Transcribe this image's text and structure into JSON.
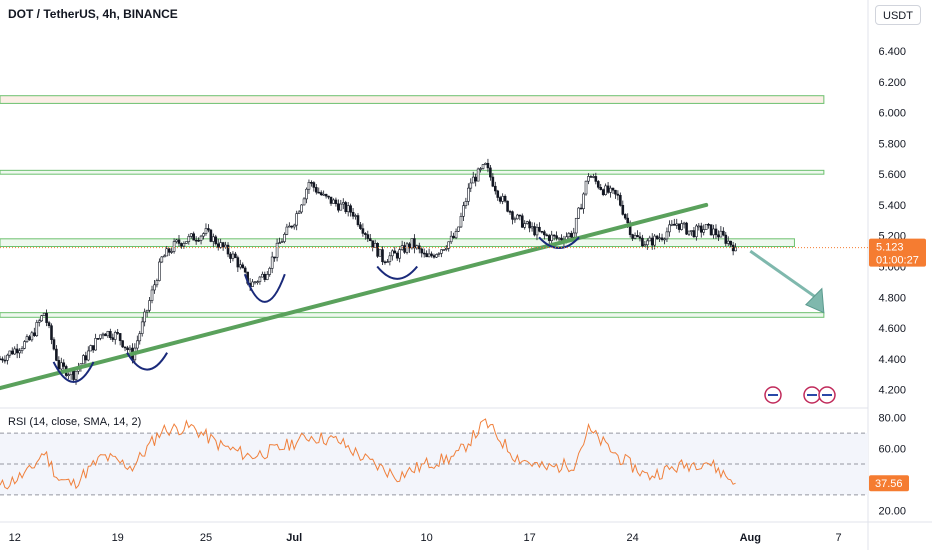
{
  "header": {
    "title": "DOT / TetherUS, 4h, BINANCE",
    "currency": "USDT"
  },
  "chart_data": [
    {
      "type": "candlestick",
      "title": "DOT / TetherUS, 4h, BINANCE",
      "y_unit": "USDT",
      "ylim": [
        4.1,
        6.55
      ],
      "y_ticks": [
        "6.400",
        "6.200",
        "6.000",
        "5.800",
        "5.600",
        "5.400",
        "5.200",
        "5.000",
        "4.800",
        "4.600",
        "4.400",
        "4.200"
      ],
      "x_ticks": [
        "12",
        "19",
        "25",
        "Jul",
        "10",
        "17",
        "24",
        "Aug",
        "7"
      ],
      "x_range": [
        "2023-06-11",
        "2023-08-09"
      ],
      "price_path": [
        [
          "2023-06-11",
          4.4
        ],
        [
          "2023-06-13",
          4.52
        ],
        [
          "2023-06-14",
          4.7
        ],
        [
          "2023-06-15",
          4.35
        ],
        [
          "2023-06-16",
          4.3
        ],
        [
          "2023-06-18",
          4.58
        ],
        [
          "2023-06-19",
          4.55
        ],
        [
          "2023-06-20",
          4.42
        ],
        [
          "2023-06-21",
          4.72
        ],
        [
          "2023-06-22",
          5.05
        ],
        [
          "2023-06-23",
          5.15
        ],
        [
          "2023-06-25",
          5.22
        ],
        [
          "2023-06-27",
          5.05
        ],
        [
          "2023-06-28",
          4.88
        ],
        [
          "2023-06-29",
          4.95
        ],
        [
          "2023-06-30",
          5.15
        ],
        [
          "2023-07-01",
          5.3
        ],
        [
          "2023-07-02",
          5.55
        ],
        [
          "2023-07-03",
          5.45
        ],
        [
          "2023-07-05",
          5.35
        ],
        [
          "2023-07-06",
          5.2
        ],
        [
          "2023-07-07",
          5.05
        ],
        [
          "2023-07-08",
          5.08
        ],
        [
          "2023-07-09",
          5.15
        ],
        [
          "2023-07-10",
          5.05
        ],
        [
          "2023-07-11",
          5.12
        ],
        [
          "2023-07-12",
          5.2
        ],
        [
          "2023-07-13",
          5.55
        ],
        [
          "2023-07-14",
          5.65
        ],
        [
          "2023-07-15",
          5.45
        ],
        [
          "2023-07-16",
          5.32
        ],
        [
          "2023-07-17",
          5.25
        ],
        [
          "2023-07-18",
          5.2
        ],
        [
          "2023-07-19",
          5.18
        ],
        [
          "2023-07-20",
          5.22
        ],
        [
          "2023-07-21",
          5.6
        ],
        [
          "2023-07-22",
          5.5
        ],
        [
          "2023-07-23",
          5.45
        ],
        [
          "2023-07-24",
          5.2
        ],
        [
          "2023-07-25",
          5.15
        ],
        [
          "2023-07-26",
          5.2
        ],
        [
          "2023-07-27",
          5.28
        ],
        [
          "2023-07-28",
          5.22
        ],
        [
          "2023-07-29",
          5.25
        ],
        [
          "2023-07-30",
          5.2
        ],
        [
          "2023-07-31",
          5.123
        ]
      ],
      "last_price_label": "5.123",
      "countdown_label": "01:00:27",
      "zones": [
        {
          "y_low": 6.06,
          "y_high": 6.11,
          "x_end": "2023-08-06",
          "fill": "#fbeee6"
        },
        {
          "y_low": 5.6,
          "y_high": 5.625,
          "x_end": "2023-08-06",
          "fill": "#eef8ee"
        },
        {
          "y_low": 5.13,
          "y_high": 5.18,
          "x_end": "2023-08-04",
          "fill": "#eef8ee"
        },
        {
          "y_low": 4.67,
          "y_high": 4.7,
          "x_end": "2023-08-06",
          "fill": "#eef8ee"
        }
      ],
      "trendline": {
        "start": [
          "2023-06-11",
          4.21
        ],
        "end": [
          "2023-07-29",
          5.4
        ],
        "color": "#5aa15c"
      },
      "arrow": {
        "start": [
          "2023-08-01",
          5.1
        ],
        "end": [
          "2023-08-06",
          4.7
        ],
        "color": "#7fb8ad"
      },
      "arcs": [
        {
          "x_center": "2023-06-16",
          "y_top": 4.38,
          "y_bottom": 4.25
        },
        {
          "x_center": "2023-06-21",
          "y_top": 4.44,
          "y_bottom": 4.33
        },
        {
          "x_center": "2023-06-29",
          "y_top": 4.95,
          "y_bottom": 4.77
        },
        {
          "x_center": "2023-07-08",
          "y_top": 5.0,
          "y_bottom": 4.92
        },
        {
          "x_center": "2023-07-19",
          "y_top": 5.19,
          "y_bottom": 5.12
        }
      ],
      "colors": {
        "up": "#131722",
        "down": "#131722",
        "price_label": "#f57c31"
      }
    },
    {
      "type": "line",
      "title": "RSI (14, close, SMA, 14, 2)",
      "series": [
        {
          "name": "RSI",
          "color": "#f0803c",
          "x": [
            "2023-06-11",
            "2023-06-13",
            "2023-06-14",
            "2023-06-15",
            "2023-06-16",
            "2023-06-18",
            "2023-06-20",
            "2023-06-22",
            "2023-06-24",
            "2023-06-26",
            "2023-06-28",
            "2023-06-30",
            "2023-07-02",
            "2023-07-04",
            "2023-07-06",
            "2023-07-08",
            "2023-07-10",
            "2023-07-12",
            "2023-07-14",
            "2023-07-16",
            "2023-07-18",
            "2023-07-20",
            "2023-07-21",
            "2023-07-23",
            "2023-07-25",
            "2023-07-27",
            "2023-07-29",
            "2023-07-31"
          ],
          "values": [
            35,
            45,
            58,
            40,
            37,
            55,
            48,
            72,
            74,
            62,
            55,
            60,
            68,
            65,
            52,
            42,
            50,
            55,
            77,
            55,
            47,
            50,
            72,
            55,
            42,
            48,
            52,
            37.56
          ]
        }
      ],
      "ylim": [
        15,
        85
      ],
      "y_ticks": [
        "80.00",
        "60.00",
        "20.00"
      ],
      "bands": [
        70,
        50,
        30
      ],
      "last_value_label": "37.56"
    }
  ]
}
